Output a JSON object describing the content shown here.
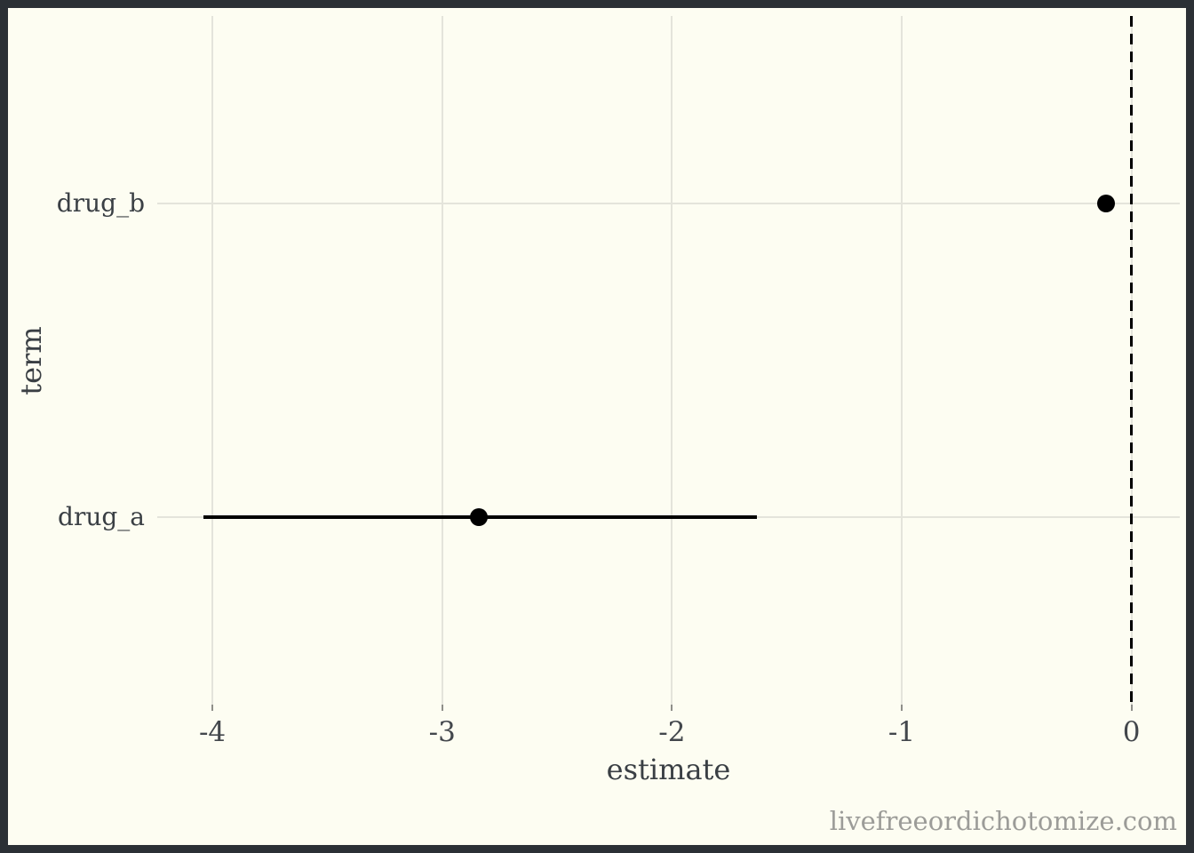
{
  "watermark": "livefreeordichotomize.com",
  "colors": {
    "background": "#FDFDF2",
    "frame": "#2B3035",
    "grid": "#E4E4DB",
    "text": "#3A3F44",
    "tick": "#8F8F89",
    "watermark": "#9C9C98",
    "data": "#000000"
  },
  "chart_data": {
    "type": "scatter",
    "subtype": "pointrange-forest",
    "title": "",
    "xlabel": "estimate",
    "ylabel": "term",
    "xlim": [
      -4.24,
      0.21
    ],
    "x_ticks": [
      -4,
      -3,
      -2,
      -1,
      0
    ],
    "x_tick_labels": [
      "-4",
      "-3",
      "-2",
      "-1",
      "0"
    ],
    "grid": "major",
    "legend_position": "none",
    "reference_line": {
      "x": 0,
      "style": "dashed",
      "color": "#000000"
    },
    "rows": [
      {
        "term": "drug_b",
        "estimate": -0.11,
        "conf_low": -0.13,
        "conf_high": -0.09
      },
      {
        "term": "drug_a",
        "estimate": -2.84,
        "conf_low": -4.04,
        "conf_high": -1.63
      }
    ]
  }
}
